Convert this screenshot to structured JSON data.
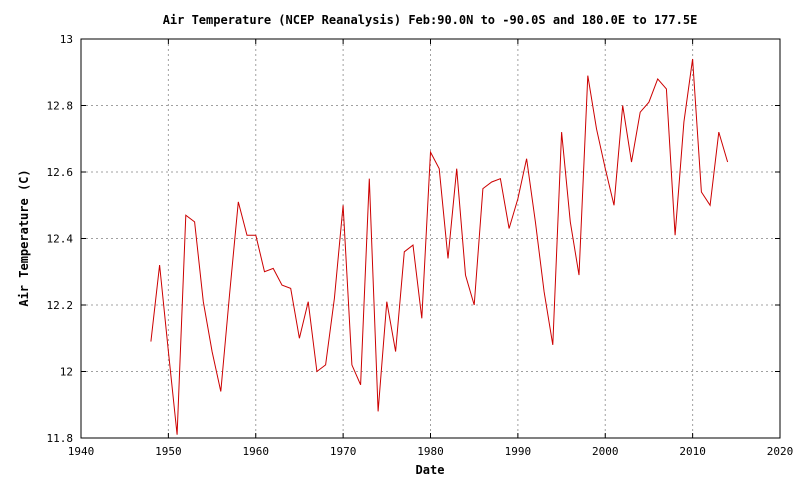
{
  "chart_data": {
    "type": "line",
    "title": "Air Temperature (NCEP Reanalysis) Feb:90.0N to -90.0S and 180.0E to 177.5E",
    "xlabel": "Date",
    "ylabel": "Air Temperature (C)",
    "xlim": [
      1940,
      2020
    ],
    "ylim": [
      11.8,
      13
    ],
    "xticks": [
      1940,
      1950,
      1960,
      1970,
      1980,
      1990,
      2000,
      2010,
      2020
    ],
    "yticks": [
      11.8,
      12,
      12.2,
      12.4,
      12.6,
      12.8,
      13
    ],
    "ytick_labels": [
      "11.8",
      "12",
      "12.2",
      "12.4",
      "12.6",
      "12.8",
      "13"
    ],
    "grid": true,
    "series": [
      {
        "color": "#cc0000",
        "x": [
          1948,
          1949,
          1950,
          1951,
          1952,
          1953,
          1954,
          1955,
          1956,
          1957,
          1958,
          1959,
          1960,
          1961,
          1962,
          1963,
          1964,
          1965,
          1966,
          1967,
          1968,
          1969,
          1970,
          1971,
          1972,
          1973,
          1974,
          1975,
          1976,
          1977,
          1978,
          1979,
          1980,
          1981,
          1982,
          1983,
          1984,
          1985,
          1986,
          1987,
          1988,
          1989,
          1990,
          1991,
          1992,
          1993,
          1994,
          1995,
          1996,
          1997,
          1998,
          1999,
          2000,
          2001,
          2002,
          2003,
          2004,
          2005,
          2006,
          2007,
          2008,
          2009,
          2010,
          2011,
          2012,
          2013,
          2014
        ],
        "values": [
          12.09,
          12.32,
          12.06,
          11.81,
          12.47,
          12.45,
          12.21,
          12.06,
          11.94,
          12.23,
          12.51,
          12.41,
          12.41,
          12.3,
          12.31,
          12.26,
          12.25,
          12.1,
          12.21,
          12.0,
          12.02,
          12.22,
          12.5,
          12.02,
          11.96,
          12.58,
          11.88,
          12.21,
          12.06,
          12.36,
          12.38,
          12.16,
          12.66,
          12.61,
          12.34,
          12.61,
          12.29,
          12.2,
          12.55,
          12.57,
          12.58,
          12.43,
          12.52,
          12.64,
          12.45,
          12.24,
          12.08,
          12.72,
          12.45,
          12.29,
          12.89,
          12.73,
          12.61,
          12.5,
          12.8,
          12.63,
          12.78,
          12.81,
          12.88,
          12.85,
          12.41,
          12.75,
          12.94,
          12.54,
          12.5,
          12.72,
          12.63
        ]
      }
    ]
  }
}
